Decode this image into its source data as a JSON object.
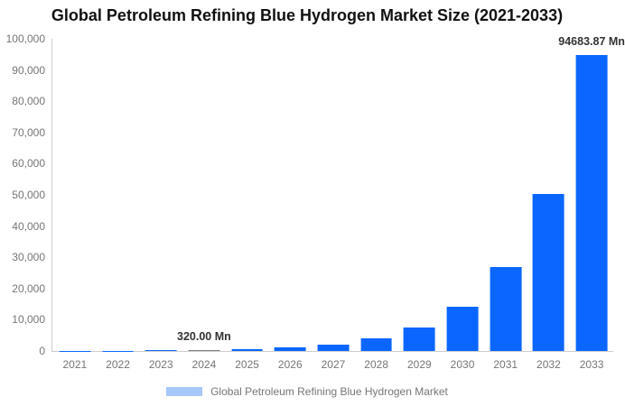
{
  "page": {
    "background": "#ffffff"
  },
  "chart_data": {
    "type": "bar",
    "title": "Global Petroleum Refining Blue Hydrogen Market Size (2021-2033)",
    "unit": "Mn",
    "categories": [
      "2021",
      "2022",
      "2023",
      "2024",
      "2025",
      "2026",
      "2027",
      "2028",
      "2029",
      "2030",
      "2031",
      "2032",
      "2033"
    ],
    "values": [
      48.02,
      90.36,
      170.05,
      320.0,
      602.19,
      1133.22,
      2132.53,
      4013.07,
      7551.93,
      14211.49,
      26743.55,
      50326.76,
      94683.87
    ],
    "ylim": [
      0,
      100000
    ],
    "ytick_labels": [
      "0",
      "10,000",
      "20,000",
      "30,000",
      "40,000",
      "50,000",
      "60,000",
      "70,000",
      "80,000",
      "90,000",
      "100,000"
    ],
    "xlabel": "",
    "ylabel": "",
    "grid": false,
    "legend_position": "bottom",
    "bar_color": "#0a66ff",
    "highlighted_bar": {
      "index": 3,
      "color": "#808080"
    },
    "annotations": [
      {
        "index": 3,
        "text": "320.00 Mn"
      },
      {
        "index": 12,
        "text": "94683.87 Mn"
      }
    ]
  },
  "legend": {
    "label": "Global Petroleum Refining Blue Hydrogen Market",
    "swatch_color": "#a6c8fa"
  },
  "colors": {
    "axis_line": "#cccccc",
    "axis_text": "#757575",
    "annotation_text": "#333333",
    "title_text": "#111111"
  }
}
